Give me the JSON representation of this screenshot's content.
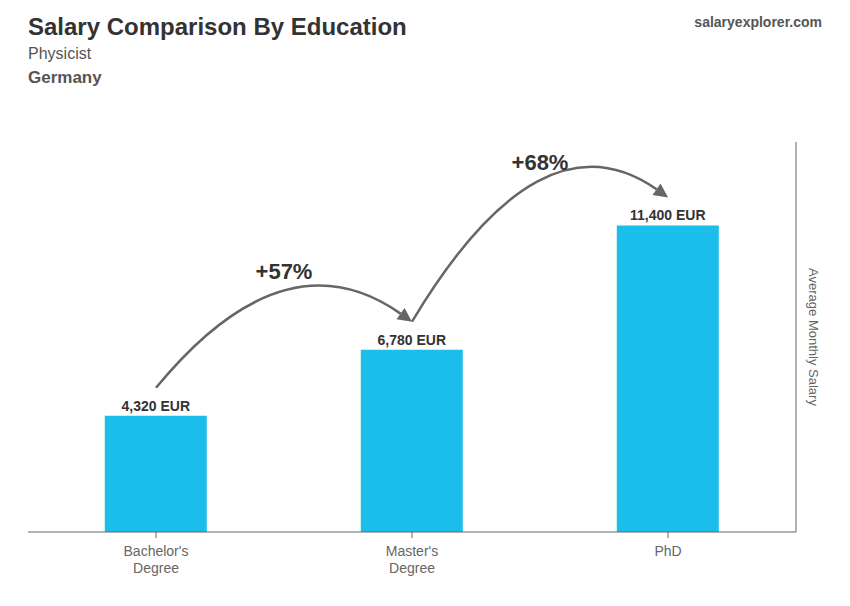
{
  "chart_data": {
    "type": "bar",
    "title": "Salary Comparison By Education",
    "subtitle": [
      "Physicist",
      "Germany"
    ],
    "ylabel": "Average Monthly Salary",
    "categories": [
      "Bachelor's\nDegree",
      "Master's\nDegree",
      "PhD"
    ],
    "values": [
      4320,
      6780,
      11400
    ],
    "value_labels": [
      "4,320 EUR",
      "6,780 EUR",
      "11,400 EUR"
    ],
    "data_labels": true,
    "color": "#1BBEEB",
    "ylim": [
      0,
      14500
    ],
    "grid": false,
    "tick_labels": "x",
    "annotations": [
      {
        "text": "salaryexplorer.com"
      },
      {
        "text": "+57%",
        "from": "Bachelor's\nDegree",
        "to": "Master's\nDegree"
      },
      {
        "text": "+68%",
        "from": "Master's\nDegree",
        "to": "PhD"
      }
    ]
  }
}
